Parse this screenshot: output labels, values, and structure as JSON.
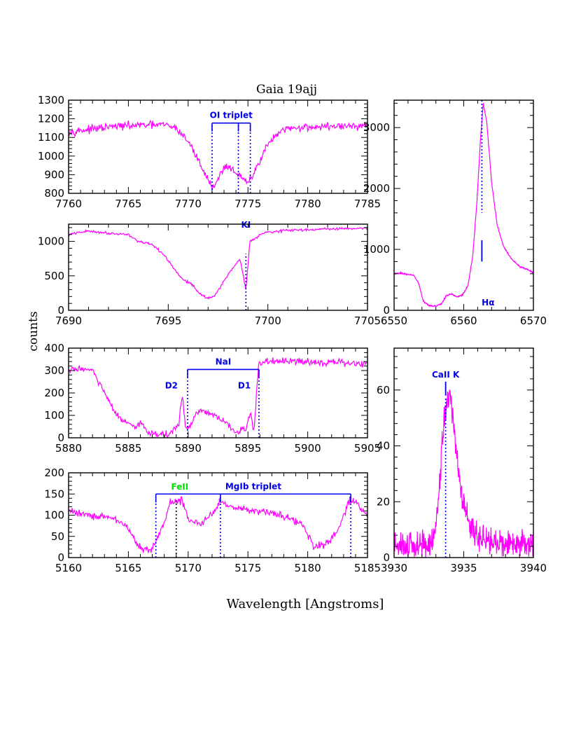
{
  "figure": {
    "title": "Gaia 19ajj",
    "ylabel": "counts",
    "xlabel": "Wavelength [Angstroms]"
  },
  "colors": {
    "spectrum": "#ff00ff",
    "marker": "#0000ee",
    "feII": "#00dd00"
  },
  "chart_data": [
    {
      "id": "oi",
      "type": "line",
      "xlim": [
        7760,
        7785
      ],
      "ylim": [
        800,
        1300
      ],
      "xticks": [
        7760,
        7765,
        7770,
        7775,
        7780,
        7785
      ],
      "yticks": [
        800,
        900,
        1000,
        1100,
        1200,
        1300
      ],
      "profile": [
        [
          7760,
          1130
        ],
        [
          7762,
          1145
        ],
        [
          7764,
          1160
        ],
        [
          7766,
          1165
        ],
        [
          7768,
          1168
        ],
        [
          7769,
          1150
        ],
        [
          7770,
          1080
        ],
        [
          7771,
          960
        ],
        [
          7771.6,
          880
        ],
        [
          7772,
          835
        ],
        [
          7772.4,
          860
        ],
        [
          7772.8,
          920
        ],
        [
          7773.2,
          950
        ],
        [
          7773.7,
          930
        ],
        [
          7774.2,
          900
        ],
        [
          7774.6,
          870
        ],
        [
          7775,
          860
        ],
        [
          7775.3,
          880
        ],
        [
          7775.8,
          950
        ],
        [
          7776.5,
          1050
        ],
        [
          7777.5,
          1120
        ],
        [
          7778.5,
          1150
        ],
        [
          7780,
          1155
        ],
        [
          7782,
          1160
        ],
        [
          7785,
          1160
        ]
      ],
      "noise": 20,
      "annotations": [
        {
          "type": "bracket",
          "label": "OI triplet",
          "x_start": 7772.0,
          "x_end": 7775.2,
          "y": 1177,
          "ticks": [
            7774.2
          ],
          "color": "blue"
        },
        {
          "type": "vline",
          "x": 7772.0,
          "y_from": 800,
          "y_to": 1177,
          "color": "blue"
        },
        {
          "type": "vline",
          "x": 7774.2,
          "y_from": 800,
          "y_to": 1177,
          "color": "blue"
        },
        {
          "type": "vline",
          "x": 7775.2,
          "y_from": 800,
          "y_to": 1177,
          "color": "blue"
        }
      ]
    },
    {
      "id": "ki",
      "type": "line",
      "xlim": [
        7690,
        7705
      ],
      "ylim": [
        0,
        1250
      ],
      "xticks": [
        7690,
        7695,
        7700,
        7705
      ],
      "yticks": [
        0,
        500,
        1000
      ],
      "profile": [
        [
          7690,
          1100
        ],
        [
          7691,
          1150
        ],
        [
          7692,
          1120
        ],
        [
          7693,
          1100
        ],
        [
          7693.5,
          1000
        ],
        [
          7694.2,
          950
        ],
        [
          7694.8,
          800
        ],
        [
          7695.3,
          600
        ],
        [
          7695.7,
          450
        ],
        [
          7696.2,
          380
        ],
        [
          7696.6,
          230
        ],
        [
          7697,
          180
        ],
        [
          7697.3,
          200
        ],
        [
          7697.7,
          380
        ],
        [
          7698.2,
          600
        ],
        [
          7698.6,
          750
        ],
        [
          7698.9,
          300
        ],
        [
          7699.1,
          1000
        ],
        [
          7699.8,
          1130
        ],
        [
          7701,
          1160
        ],
        [
          7703,
          1180
        ],
        [
          7705,
          1190
        ]
      ],
      "noise": 18,
      "annotations": [
        {
          "type": "label",
          "label": "KI",
          "x": 7698.9,
          "y": 1200,
          "color": "blue"
        },
        {
          "type": "vline",
          "x": 7698.9,
          "y_from": 0,
          "y_to": 820,
          "color": "blue"
        }
      ]
    },
    {
      "id": "nai",
      "type": "line",
      "xlim": [
        5880,
        5905
      ],
      "ylim": [
        0,
        400
      ],
      "xticks": [
        5880,
        5885,
        5890,
        5895,
        5900,
        5905
      ],
      "yticks": [
        0,
        100,
        200,
        300,
        400
      ],
      "profile": [
        [
          5880,
          300
        ],
        [
          5881,
          310
        ],
        [
          5882,
          300
        ],
        [
          5883,
          200
        ],
        [
          5884,
          100
        ],
        [
          5885,
          60
        ],
        [
          5885.5,
          40
        ],
        [
          5886,
          70
        ],
        [
          5886.5,
          30
        ],
        [
          5887.5,
          15
        ],
        [
          5888.5,
          15
        ],
        [
          5889.2,
          60
        ],
        [
          5889.5,
          190
        ],
        [
          5889.8,
          40
        ],
        [
          5890.2,
          50
        ],
        [
          5890.7,
          110
        ],
        [
          5891.3,
          120
        ],
        [
          5892,
          100
        ],
        [
          5892.8,
          80
        ],
        [
          5893.3,
          60
        ],
        [
          5894,
          20
        ],
        [
          5894.8,
          40
        ],
        [
          5895.2,
          110
        ],
        [
          5895.5,
          30
        ],
        [
          5895.9,
          330
        ],
        [
          5896.5,
          340
        ],
        [
          5898,
          340
        ],
        [
          5900,
          340
        ],
        [
          5905,
          330
        ]
      ],
      "noise": 15,
      "annotations": [
        {
          "type": "bracket",
          "label": "NaI",
          "x_start": 5889.95,
          "x_end": 5895.92,
          "y": 305,
          "ticks": [],
          "color": "blue"
        },
        {
          "type": "vline",
          "x": 5889.95,
          "y_from": 0,
          "y_to": 305,
          "color": "blue"
        },
        {
          "type": "vline",
          "x": 5895.92,
          "y_from": 0,
          "y_to": 305,
          "color": "blue"
        },
        {
          "type": "label",
          "label": "D2",
          "x": 5888.6,
          "y": 220,
          "color": "blue"
        },
        {
          "type": "label",
          "label": "D1",
          "x": 5894.7,
          "y": 220,
          "color": "blue"
        }
      ]
    },
    {
      "id": "mgib",
      "type": "line",
      "xlim": [
        5160,
        5185
      ],
      "ylim": [
        0,
        200
      ],
      "xticks": [
        5160,
        5165,
        5170,
        5175,
        5180,
        5185
      ],
      "yticks": [
        0,
        50,
        100,
        150,
        200
      ],
      "profile": [
        [
          5160,
          110
        ],
        [
          5162,
          100
        ],
        [
          5164,
          90
        ],
        [
          5165,
          70
        ],
        [
          5166,
          20
        ],
        [
          5167,
          20
        ],
        [
          5168,
          80
        ],
        [
          5168.5,
          130
        ],
        [
          5169.5,
          135
        ],
        [
          5170,
          90
        ],
        [
          5171,
          80
        ],
        [
          5172,
          100
        ],
        [
          5172.7,
          135
        ],
        [
          5173.5,
          120
        ],
        [
          5176,
          110
        ],
        [
          5178,
          100
        ],
        [
          5179.5,
          80
        ],
        [
          5180.5,
          25
        ],
        [
          5181.5,
          30
        ],
        [
          5182.5,
          60
        ],
        [
          5183.5,
          135
        ],
        [
          5184,
          130
        ],
        [
          5185,
          100
        ]
      ],
      "noise": 9,
      "annotations": [
        {
          "type": "bracket",
          "label": "MgIb triplet",
          "x_start": 5167.3,
          "x_end": 5183.6,
          "y": 150,
          "ticks": [
            5172.7
          ],
          "color": "blue"
        },
        {
          "type": "label",
          "label": "FeII",
          "x": 5169.3,
          "y": 160,
          "color": "green"
        },
        {
          "type": "vline",
          "x": 5167.3,
          "y_from": 0,
          "y_to": 150,
          "color": "blue"
        },
        {
          "type": "vline",
          "x": 5172.7,
          "y_from": 0,
          "y_to": 150,
          "color": "blue"
        },
        {
          "type": "vline",
          "x": 5183.6,
          "y_from": 0,
          "y_to": 150,
          "color": "blue"
        },
        {
          "type": "vline",
          "x": 5169.0,
          "y_from": 0,
          "y_to": 135,
          "color": "black"
        }
      ]
    },
    {
      "id": "halpha",
      "type": "line",
      "xlim": [
        6550,
        6570
      ],
      "ylim": [
        0,
        3450
      ],
      "xticks": [
        6550,
        6560,
        6570
      ],
      "yticks": [
        0,
        1000,
        2000,
        3000
      ],
      "profile": [
        [
          6550,
          600
        ],
        [
          6551,
          610
        ],
        [
          6552,
          590
        ],
        [
          6552.8,
          580
        ],
        [
          6553.5,
          450
        ],
        [
          6554.2,
          150
        ],
        [
          6555,
          80
        ],
        [
          6556,
          70
        ],
        [
          6556.8,
          100
        ],
        [
          6557.5,
          240
        ],
        [
          6558.2,
          270
        ],
        [
          6559,
          220
        ],
        [
          6559.8,
          250
        ],
        [
          6560.6,
          400
        ],
        [
          6561.3,
          900
        ],
        [
          6561.9,
          1800
        ],
        [
          6562.4,
          2800
        ],
        [
          6562.8,
          3400
        ],
        [
          6563.3,
          3100
        ],
        [
          6564,
          2100
        ],
        [
          6564.8,
          1400
        ],
        [
          6565.7,
          1050
        ],
        [
          6566.8,
          850
        ],
        [
          6568,
          720
        ],
        [
          6569,
          680
        ],
        [
          6570,
          620
        ]
      ],
      "noise": 12,
      "annotations": [
        {
          "type": "vline",
          "x": 6562.6,
          "y_from": 3450,
          "y_to": 1600,
          "color": "blue"
        },
        {
          "type": "tick",
          "x": 6562.6,
          "y_from": 1150,
          "y_to": 800,
          "color": "blue"
        },
        {
          "type": "label",
          "label": "Hα",
          "x": 6563.5,
          "y": 80,
          "color": "blue"
        }
      ]
    },
    {
      "id": "caii",
      "type": "line",
      "xlim": [
        3930,
        3940
      ],
      "ylim": [
        0,
        75
      ],
      "xticks": [
        3930,
        3935,
        3940
      ],
      "yticks": [
        0,
        20,
        40,
        60
      ],
      "profile": [
        [
          3930,
          4
        ],
        [
          3931,
          4
        ],
        [
          3932,
          4
        ],
        [
          3932.8,
          6
        ],
        [
          3933.2,
          20
        ],
        [
          3933.5,
          45
        ],
        [
          3933.8,
          56
        ],
        [
          3934,
          58
        ],
        [
          3934.2,
          52
        ],
        [
          3934.5,
          35
        ],
        [
          3934.9,
          22
        ],
        [
          3935.5,
          10
        ],
        [
          3936.5,
          6
        ],
        [
          3938,
          5
        ],
        [
          3940,
          4
        ]
      ],
      "noise": 5,
      "annotations": [
        {
          "type": "label",
          "label": "CaII K",
          "x": 3933.7,
          "y": 64.5,
          "color": "blue"
        },
        {
          "type": "tick",
          "x": 3933.7,
          "y_from": 63,
          "y_to": 58,
          "color": "blue"
        },
        {
          "type": "vline",
          "x": 3933.7,
          "y_from": 0,
          "y_to": 57,
          "color": "blue"
        }
      ]
    }
  ]
}
